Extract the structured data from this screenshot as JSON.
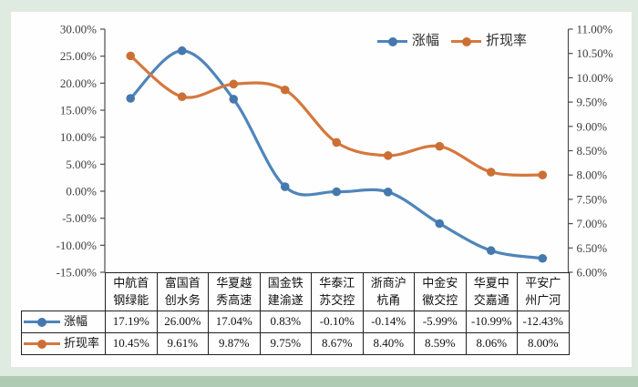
{
  "page": {
    "background_color": "#dfeae0",
    "panel_color": "#fefefe",
    "footer_strip_color": "#afcbb4"
  },
  "chart_data": {
    "type": "line",
    "title": "",
    "grid": false,
    "legend_position": "top-inside",
    "categories": [
      "中航首钢绿能",
      "富国首创水务",
      "华夏越秀高速",
      "国金铁建渝遂",
      "华泰江苏交控",
      "浙商沪杭甬",
      "中金安徽交控",
      "华夏中交嘉通",
      "平安广州广河"
    ],
    "categories_lines": [
      [
        "中航首",
        "钢绿能"
      ],
      [
        "富国首",
        "创水务"
      ],
      [
        "华夏越",
        "秀高速"
      ],
      [
        "国金铁",
        "建渝遂"
      ],
      [
        "华泰江",
        "苏交控"
      ],
      [
        "浙商沪",
        "杭甬"
      ],
      [
        "中金安",
        "徽交控"
      ],
      [
        "华夏中",
        "交嘉通"
      ],
      [
        "平安广",
        "州广河"
      ]
    ],
    "series": [
      {
        "id": "gain",
        "name": "涨幅",
        "axis": "left",
        "color": "#4f85ba",
        "marker_color": "#4478ae",
        "values": [
          17.19,
          26.0,
          17.04,
          0.83,
          -0.1,
          -0.14,
          -5.99,
          -10.99,
          -12.43
        ],
        "labels": [
          "17.19%",
          "26.00%",
          "17.04%",
          "0.83%",
          "-0.10%",
          "-0.14%",
          "-5.99%",
          "-10.99%",
          "-12.43%"
        ]
      },
      {
        "id": "discount_rate",
        "name": "折现率",
        "axis": "right",
        "color": "#d5783e",
        "marker_color": "#cc6f35",
        "values": [
          10.45,
          9.61,
          9.87,
          9.75,
          8.67,
          8.4,
          8.59,
          8.06,
          8.0
        ],
        "labels": [
          "10.45%",
          "9.61%",
          "9.87%",
          "9.75%",
          "8.67%",
          "8.40%",
          "8.59%",
          "8.06%",
          "8.00%"
        ]
      }
    ],
    "left_axis": {
      "min": -15,
      "max": 30,
      "step": 5,
      "ticks": [
        "30.00%",
        "25.00%",
        "20.00%",
        "15.00%",
        "10.00%",
        "5.00%",
        "0.00%",
        "-5.00%",
        "-10.00%",
        "-15.00%"
      ]
    },
    "right_axis": {
      "min": 6,
      "max": 11,
      "step": 0.5,
      "ticks": [
        "11.00%",
        "10.50%",
        "10.00%",
        "9.50%",
        "9.00%",
        "8.50%",
        "8.00%",
        "7.50%",
        "7.00%",
        "6.50%",
        "6.00%"
      ]
    }
  }
}
